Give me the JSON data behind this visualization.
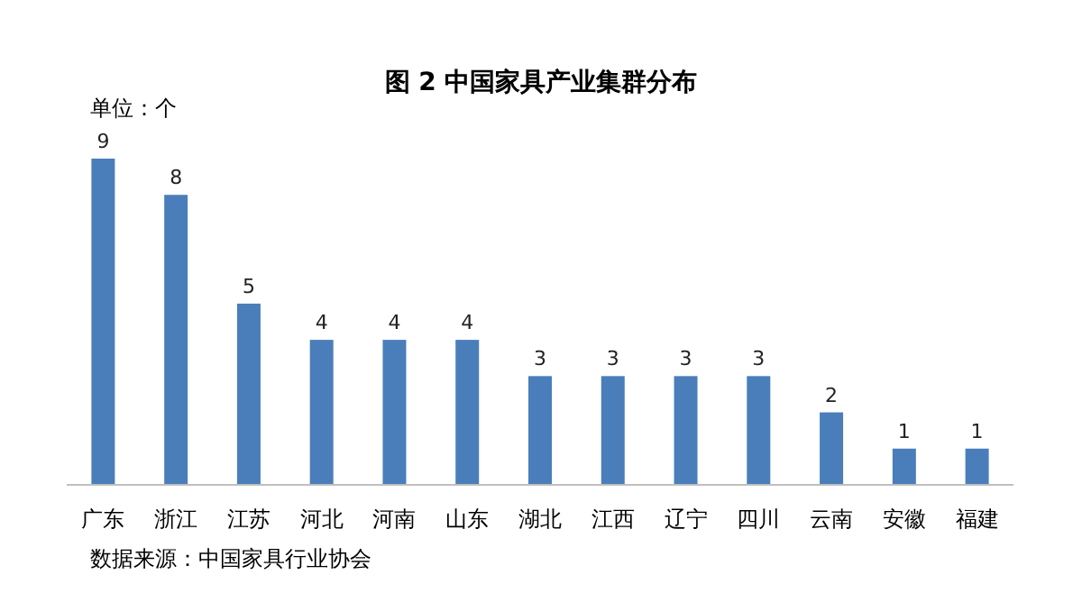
{
  "chart_data": {
    "type": "bar",
    "title": "图 2 中国家具产业集群分布",
    "categories": [
      "广东",
      "浙江",
      "江苏",
      "河北",
      "河南",
      "山东",
      "湖北",
      "江西",
      "辽宁",
      "四川",
      "云南",
      "安徽",
      "福建"
    ],
    "values": [
      9,
      8,
      5,
      4,
      4,
      4,
      3,
      3,
      3,
      3,
      2,
      1,
      1
    ],
    "color": "#4a7ebb",
    "data_labels": true,
    "annotations": [
      "单位：个",
      "数据来源：中国家具行业协会"
    ]
  }
}
